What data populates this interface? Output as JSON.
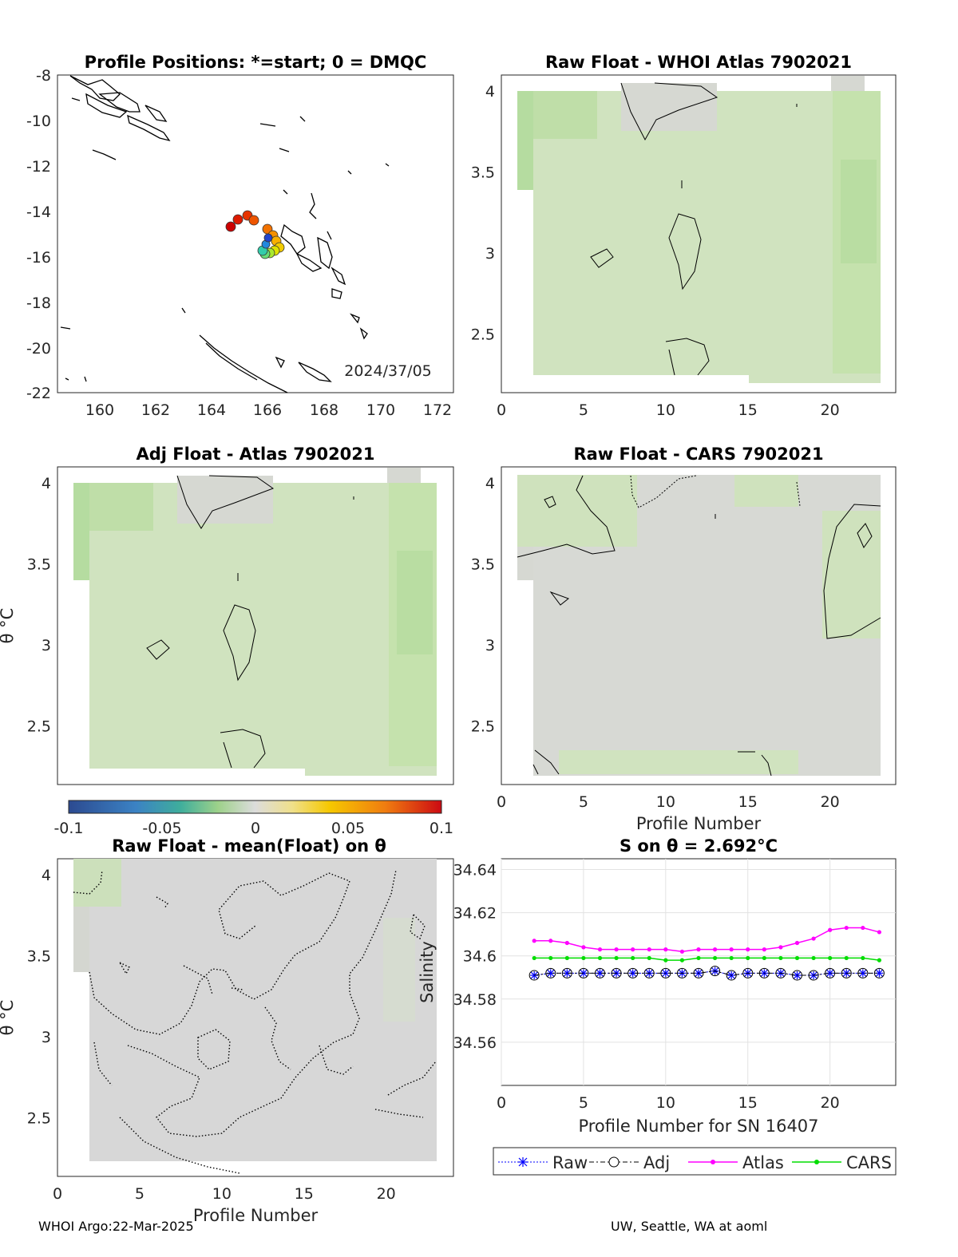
{
  "footer": {
    "left": "WHOI Argo:22-Mar-2025",
    "right": "UW, Seattle, WA at aoml"
  },
  "map_panel": {
    "title": "Profile Positions: *=start; 0 = DMQC",
    "date_label": "2024/37/05",
    "x_ticks": [
      "160",
      "162",
      "164",
      "166",
      "168",
      "170",
      "172"
    ],
    "y_ticks": [
      "-8",
      "-10",
      "-12",
      "-14",
      "-16",
      "-18",
      "-20",
      "-22"
    ]
  },
  "colorbar": {
    "ticks": [
      "-0.1",
      "-0.05",
      "0",
      "0.05",
      "0.1"
    ]
  },
  "theta_panels": {
    "y_ticks": [
      "4",
      "3.5",
      "3",
      "2.5"
    ],
    "x_ticks": [
      "0",
      "5",
      "10",
      "15",
      "20"
    ],
    "ylabel": "θ °C",
    "xlabel": "Profile Number"
  },
  "panel_titles": {
    "whoi": "Raw Float - WHOI Atlas  7902021",
    "adj": "Adj Float - Atlas  7902021",
    "cars": "Raw Float - CARS  7902021",
    "mean": "Raw Float - mean(Float) on θ",
    "sal": "S on θ = 2.692°C"
  },
  "chart_data": {
    "type": "line",
    "title": "S on θ = 2.692°C",
    "xlabel": "Profile Number for SN 16407",
    "ylabel": "Salinity",
    "xlim": [
      0,
      24
    ],
    "ylim": [
      34.54,
      34.645
    ],
    "x_ticks": [
      "0",
      "5",
      "10",
      "15",
      "20"
    ],
    "y_ticks": [
      "34.64",
      "34.62",
      "34.6",
      "34.58",
      "34.56"
    ],
    "grid": true,
    "legend_placement": "bottom",
    "x": [
      2,
      3,
      4,
      5,
      6,
      7,
      8,
      9,
      10,
      11,
      12,
      13,
      14,
      15,
      16,
      17,
      18,
      19,
      20,
      21,
      22,
      23
    ],
    "series": [
      {
        "name": "Raw",
        "color": "#0000ff",
        "values": [
          34.591,
          34.592,
          34.592,
          34.592,
          34.592,
          34.592,
          34.592,
          34.592,
          34.592,
          34.592,
          34.592,
          34.593,
          34.591,
          34.592,
          34.592,
          34.592,
          34.591,
          34.591,
          34.592,
          34.592,
          34.592,
          34.592
        ]
      },
      {
        "name": "Adj",
        "color": "#000000",
        "values": [
          34.591,
          34.592,
          34.592,
          34.592,
          34.592,
          34.592,
          34.592,
          34.592,
          34.592,
          34.592,
          34.592,
          34.593,
          34.591,
          34.592,
          34.592,
          34.592,
          34.591,
          34.591,
          34.592,
          34.592,
          34.592,
          34.592
        ]
      },
      {
        "name": "Atlas",
        "color": "#ff00ff",
        "values": [
          34.607,
          34.607,
          34.606,
          34.604,
          34.603,
          34.603,
          34.603,
          34.603,
          34.603,
          34.602,
          34.603,
          34.603,
          34.603,
          34.603,
          34.603,
          34.604,
          34.606,
          34.608,
          34.612,
          34.613,
          34.613,
          34.611
        ]
      },
      {
        "name": "CARS",
        "color": "#00dd00",
        "values": [
          34.599,
          34.599,
          34.599,
          34.599,
          34.599,
          34.599,
          34.599,
          34.599,
          34.598,
          34.598,
          34.599,
          34.599,
          34.599,
          34.599,
          34.599,
          34.599,
          34.599,
          34.599,
          34.599,
          34.599,
          34.599,
          34.598
        ]
      }
    ]
  }
}
